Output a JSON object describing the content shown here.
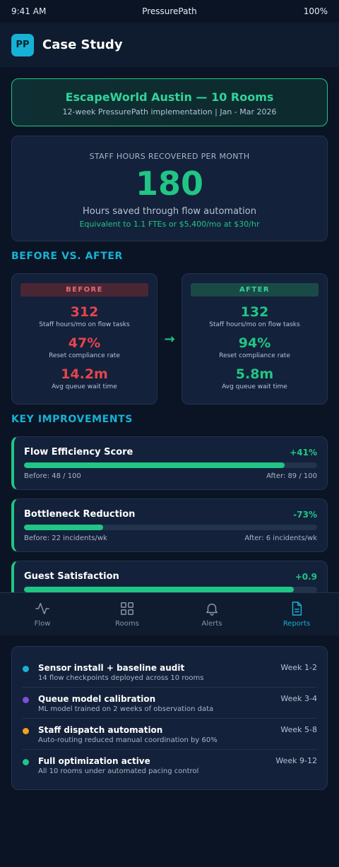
{
  "status": {
    "time": "9:41 AM",
    "carrier": "PressurePath",
    "battery": "100%"
  },
  "header": {
    "logo": "PP",
    "title": "Case Study"
  },
  "hero": {
    "title": "EscapeWorld Austin — 10 Rooms",
    "subtitle": "12-week PressurePath implementation | Jan - Mar 2026"
  },
  "metric": {
    "label": "STAFF HOURS RECOVERED PER MONTH",
    "value": "180",
    "description": "Hours saved through flow automation",
    "note": "Equivalent to 1.1 FTEs or $5,400/mo at $30/hr"
  },
  "comparison": {
    "title": "BEFORE VS. AFTER",
    "arrow": "→",
    "before": {
      "label": "BEFORE",
      "stats": [
        {
          "value": "312",
          "label": "Staff hours/mo on flow tasks"
        },
        {
          "value": "47%",
          "label": "Reset compliance rate"
        },
        {
          "value": "14.2m",
          "label": "Avg queue wait time"
        }
      ]
    },
    "after": {
      "label": "AFTER",
      "stats": [
        {
          "value": "132",
          "label": "Staff hours/mo on flow tasks"
        },
        {
          "value": "94%",
          "label": "Reset compliance rate"
        },
        {
          "value": "5.8m",
          "label": "Avg queue wait time"
        }
      ]
    }
  },
  "improvements": {
    "title": "KEY IMPROVEMENTS",
    "items": [
      {
        "name": "Flow Efficiency Score",
        "delta": "+41%",
        "progress": 0.89,
        "before": "Before: 48 / 100",
        "after": "After: 89 / 100"
      },
      {
        "name": "Bottleneck Reduction",
        "delta": "-73%",
        "progress": 0.27,
        "before": "Before: 22 incidents/wk",
        "after": "After: 6 incidents/wk"
      },
      {
        "name": "Guest Satisfaction",
        "delta": "+0.9",
        "progress": 0.92,
        "before": "",
        "after": ""
      }
    ]
  },
  "tabs": [
    {
      "label": "Flow",
      "icon": "pulse-icon"
    },
    {
      "label": "Rooms",
      "icon": "grid-icon"
    },
    {
      "label": "Alerts",
      "icon": "bell-icon"
    },
    {
      "label": "Reports",
      "icon": "document-icon",
      "active": true
    }
  ],
  "timeline": [
    {
      "title": "Sensor install + baseline audit",
      "desc": "14 flow checkpoints deployed across 10 rooms",
      "week": "Week 1-2",
      "color": "#16b2d6"
    },
    {
      "title": "Queue model calibration",
      "desc": "ML model trained on 2 weeks of observation data",
      "week": "Week 3-4",
      "color": "#7c4ddf"
    },
    {
      "title": "Staff dispatch automation",
      "desc": "Auto-routing reduced manual coordination by 60%",
      "week": "Week 5-8",
      "color": "#f0a21c"
    },
    {
      "title": "Full optimization active",
      "desc": "All 10 rooms under automated pacing control",
      "week": "Week 9-12",
      "color": "#21c585"
    }
  ],
  "colors": {
    "accent": "#16b2d6",
    "positive": "#21c585",
    "negative": "#e5454d",
    "background": "#0b1424"
  }
}
